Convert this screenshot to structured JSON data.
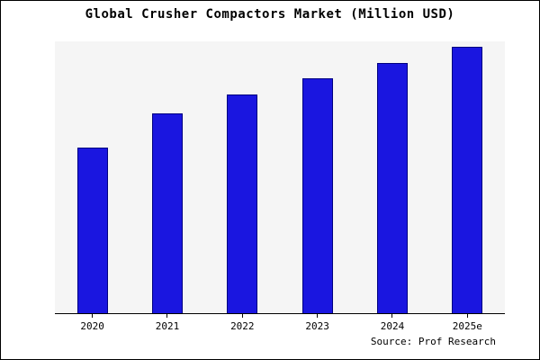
{
  "title": "Global Crusher Compactors Market (Million USD)",
  "source": "Source: Prof Research",
  "colors": {
    "bar_fill": "#1a16e0",
    "bar_border": "#000080",
    "plot_background": "#f5f5f5",
    "axis": "#000000"
  },
  "chart_data": {
    "type": "bar",
    "categories": [
      "2020",
      "2021",
      "2022",
      "2023",
      "2024",
      "2025e"
    ],
    "values": [
      62,
      75,
      82,
      88,
      94,
      100
    ],
    "title": "Global Crusher Compactors Market (Million USD)",
    "xlabel": "",
    "ylabel": "",
    "ylim": [
      0,
      102
    ],
    "grid": false,
    "legend": false,
    "annotation": "Source: Prof Research"
  }
}
